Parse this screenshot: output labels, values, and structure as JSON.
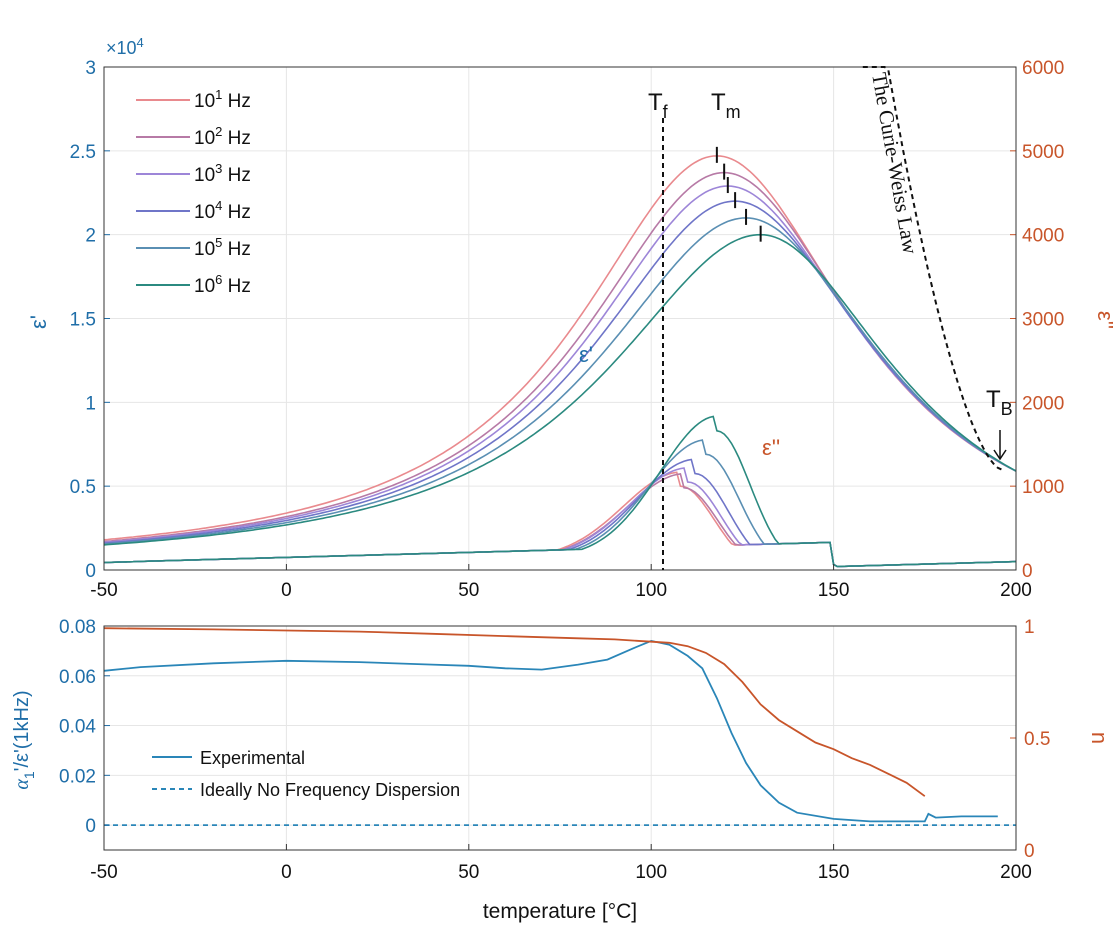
{
  "colors": {
    "left_axis": "#1f6ea8",
    "right_axis": "#c8552a",
    "grid": "#e6e6e6",
    "axis": "#333333",
    "freq": [
      "#e98a8e",
      "#b77aa6",
      "#9d86d8",
      "#6f75c8",
      "#5a8fb3",
      "#2b8a80"
    ],
    "experimental": "#2a86b8",
    "n_line": "#c8552a"
  },
  "chart_data": [
    {
      "type": "line",
      "panel": "top",
      "title": "",
      "xlabel": "",
      "xlim": [
        -50,
        200
      ],
      "x_ticks": [
        -50,
        0,
        50,
        100,
        150,
        200
      ],
      "ylim_left": [
        0,
        3
      ],
      "y_left_ticks": [
        0,
        0.5,
        1,
        1.5,
        2,
        2.5,
        3
      ],
      "y_left_tick_labels": [
        "0",
        "0.5",
        "1",
        "1.5",
        "2",
        "2.5",
        "3"
      ],
      "y_left_multiplier": "×10",
      "y_left_multiplier_exp": "4",
      "ylabel_left": "ε'",
      "ylim_right": [
        0,
        6000
      ],
      "y_right_ticks": [
        0,
        1000,
        2000,
        3000,
        4000,
        5000,
        6000
      ],
      "ylabel_right": "ε''",
      "legend_position": "top-left",
      "series": [
        {
          "name": "10¹ Hz",
          "base": "10",
          "exp": "1",
          "unit": " Hz",
          "eps_real_peak": 2.47,
          "Tm": 118,
          "eps_real_at_-50": 0.18,
          "eps_imag_peak": 1000,
          "eps_imag_peak_T": 108
        },
        {
          "name": "10² Hz",
          "base": "10",
          "exp": "2",
          "unit": " Hz",
          "eps_real_peak": 2.37,
          "Tm": 120,
          "eps_real_at_-50": 0.17,
          "eps_imag_peak": 980,
          "eps_imag_peak_T": 109
        },
        {
          "name": "10³ Hz",
          "base": "10",
          "exp": "3",
          "unit": " Hz",
          "eps_real_peak": 2.29,
          "Tm": 121,
          "eps_real_at_-50": 0.165,
          "eps_imag_peak": 1050,
          "eps_imag_peak_T": 110
        },
        {
          "name": "10⁴ Hz",
          "base": "10",
          "exp": "4",
          "unit": " Hz",
          "eps_real_peak": 2.2,
          "Tm": 123,
          "eps_real_at_-50": 0.16,
          "eps_imag_peak": 1150,
          "eps_imag_peak_T": 112
        },
        {
          "name": "10⁵ Hz",
          "base": "10",
          "exp": "5",
          "unit": " Hz",
          "eps_real_peak": 2.1,
          "Tm": 126,
          "eps_real_at_-50": 0.155,
          "eps_imag_peak": 1380,
          "eps_imag_peak_T": 115
        },
        {
          "name": "10⁶ Hz",
          "base": "10",
          "exp": "6",
          "unit": " Hz",
          "eps_real_peak": 2.0,
          "Tm": 130,
          "eps_real_at_-50": 0.15,
          "eps_imag_peak": 1660,
          "eps_imag_peak_T": 118
        }
      ],
      "eps_real_at_200": 0.59,
      "annotations": {
        "Tf": {
          "label": "T",
          "sub": "f",
          "x": 103
        },
        "Tm": {
          "label": "T",
          "sub": "m"
        },
        "TB": {
          "label": "T",
          "sub": "B",
          "x": 196
        },
        "eps_real_label": "ε'",
        "eps_imag_label": "ε''",
        "curie_weiss": "The Curie-Weiss Law"
      }
    },
    {
      "type": "line",
      "panel": "bottom",
      "xlabel": "temperature [°C]",
      "xlim": [
        -50,
        200
      ],
      "x_ticks": [
        -50,
        0,
        50,
        100,
        150,
        200
      ],
      "ylim_left": [
        -0.01,
        0.08
      ],
      "y_left_ticks": [
        0,
        0.02,
        0.04,
        0.06,
        0.08
      ],
      "y_left_tick_labels": [
        "0",
        "0.02",
        "0.04",
        "0.06",
        "0.08"
      ],
      "ylabel_left_main": "α",
      "ylabel_left_sub": "1",
      "ylabel_left_rest": "'/ε'(1kHz)",
      "ylim_right": [
        0,
        1
      ],
      "y_right_ticks": [
        0,
        0.5,
        1
      ],
      "y_right_tick_labels": [
        "0",
        "0.5",
        "1"
      ],
      "ylabel_right": "n",
      "legend_position": "bottom-left",
      "series": [
        {
          "name": "Experimental",
          "axis": "left",
          "x": [
            -50,
            -40,
            -20,
            0,
            20,
            40,
            50,
            60,
            70,
            80,
            88,
            95,
            100,
            105,
            110,
            114,
            118,
            122,
            126,
            130,
            135,
            140,
            150,
            160,
            172,
            175,
            176,
            178,
            185,
            195
          ],
          "y": [
            0.062,
            0.0635,
            0.065,
            0.066,
            0.0655,
            0.0645,
            0.064,
            0.063,
            0.0625,
            0.0645,
            0.0665,
            0.071,
            0.074,
            0.0725,
            0.068,
            0.063,
            0.051,
            0.037,
            0.025,
            0.016,
            0.009,
            0.005,
            0.0025,
            0.0015,
            0.0015,
            0.0015,
            0.0045,
            0.003,
            0.0035,
            0.0035
          ]
        },
        {
          "name": "Ideally No Frequency Dispersion",
          "axis": "left",
          "dashed": true,
          "x": [
            -50,
            200
          ],
          "y": [
            0,
            0
          ]
        },
        {
          "name": "n",
          "axis": "right",
          "x": [
            -50,
            -20,
            0,
            20,
            40,
            60,
            80,
            90,
            100,
            105,
            110,
            115,
            120,
            125,
            130,
            135,
            140,
            145,
            150,
            155,
            160,
            165,
            170,
            175
          ],
          "y": [
            0.99,
            0.985,
            0.98,
            0.975,
            0.965,
            0.955,
            0.945,
            0.94,
            0.93,
            0.925,
            0.91,
            0.88,
            0.83,
            0.75,
            0.65,
            0.58,
            0.53,
            0.48,
            0.45,
            0.41,
            0.38,
            0.34,
            0.3,
            0.24
          ]
        }
      ]
    }
  ]
}
